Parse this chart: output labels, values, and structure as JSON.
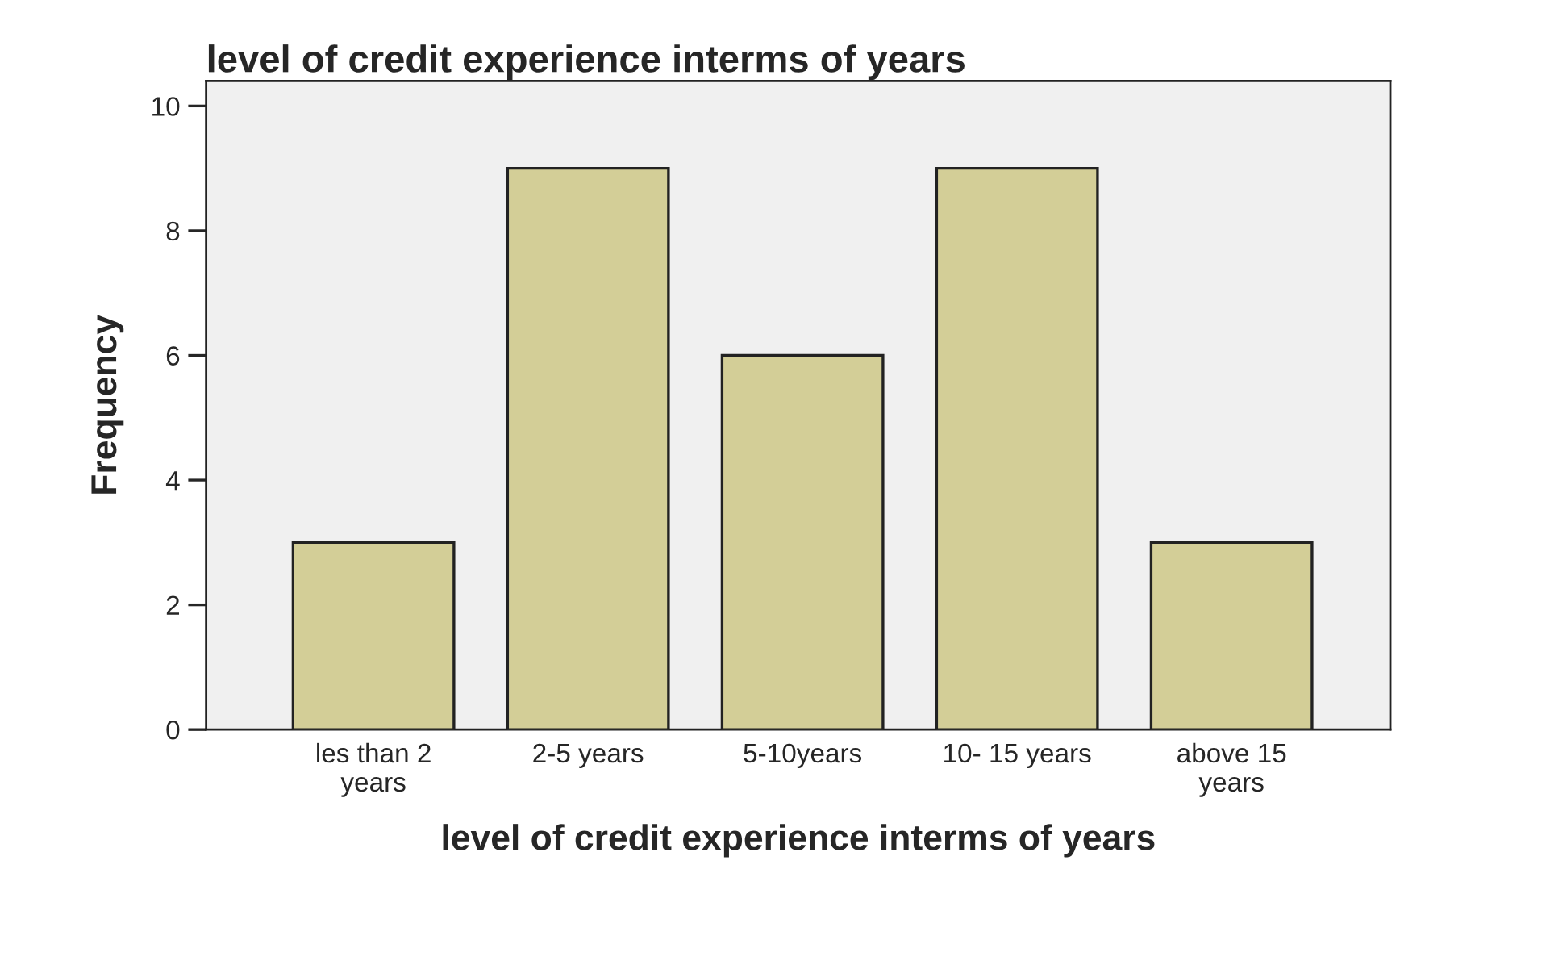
{
  "chart_data": {
    "type": "bar",
    "title": "level of credit experience interms of years",
    "xlabel": "level of credit experience interms of years",
    "ylabel": "Frequency",
    "categories": [
      "les than 2\nyears",
      "2-5 years",
      "5-10years",
      "10- 15 years",
      "above 15\nyears"
    ],
    "values": [
      3,
      9,
      6,
      9,
      3
    ],
    "color": "#d3ce97",
    "ylim": [
      0,
      10.4
    ],
    "yticks": [
      0,
      2,
      4,
      6,
      8,
      10
    ],
    "grid": false,
    "legend": false
  }
}
